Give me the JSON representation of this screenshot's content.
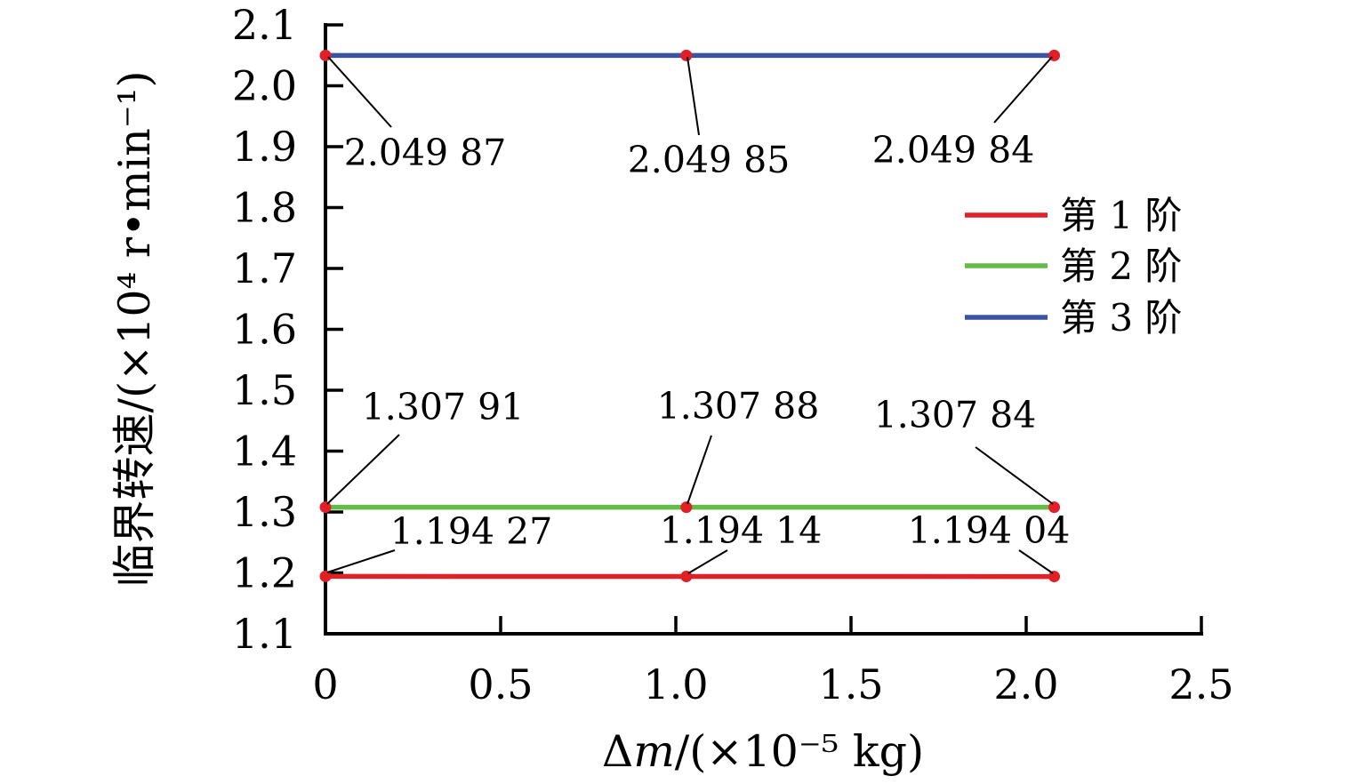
{
  "chart_data": {
    "type": "line",
    "title": "",
    "xlabel": {
      "prefix": "Δ",
      "variable": "m",
      "suffix": "/(×10⁻⁵ kg)"
    },
    "ylabel": "临界转速/(×10⁴ r•min⁻¹)",
    "xlim": [
      0,
      2.5
    ],
    "ylim": [
      1.1,
      2.1
    ],
    "x_tick_values": [
      0,
      0.5,
      1.0,
      1.5,
      2.0,
      2.5
    ],
    "x_tick_labels": [
      "0",
      "0.5",
      "1.0",
      "1.5",
      "2.0",
      "2.5"
    ],
    "y_tick_values": [
      1.1,
      1.2,
      1.3,
      1.4,
      1.5,
      1.6,
      1.7,
      1.8,
      1.9,
      2.0,
      2.1
    ],
    "y_tick_labels": [
      "1.1",
      "1.2",
      "1.3",
      "1.4",
      "1.5",
      "1.6",
      "1.7",
      "1.8",
      "1.9",
      "2.0",
      "2.1"
    ],
    "x": [
      0,
      1.03,
      2.08
    ],
    "series": [
      {
        "name": "第 1 阶",
        "color": "#e02127",
        "values": [
          1.19427,
          1.19414,
          1.19404
        ],
        "point_labels": [
          "1.194 27",
          "1.194 14",
          "1.194 04"
        ]
      },
      {
        "name": "第 2 阶",
        "color": "#63bb48",
        "values": [
          1.30791,
          1.30788,
          1.30784
        ],
        "point_labels": [
          "1.307 91",
          "1.307 88",
          "1.307 84"
        ]
      },
      {
        "name": "第 3 阶",
        "color": "#3a53a3",
        "values": [
          2.04987,
          2.04985,
          2.04984
        ],
        "point_labels": [
          "2.049 87",
          "2.049 85",
          "2.049 84"
        ]
      }
    ],
    "marker_color": "#e01f26",
    "axis_color": "#000000",
    "annotation_color": "#000000",
    "legend": {
      "position": "upper-right"
    },
    "grid": false
  }
}
